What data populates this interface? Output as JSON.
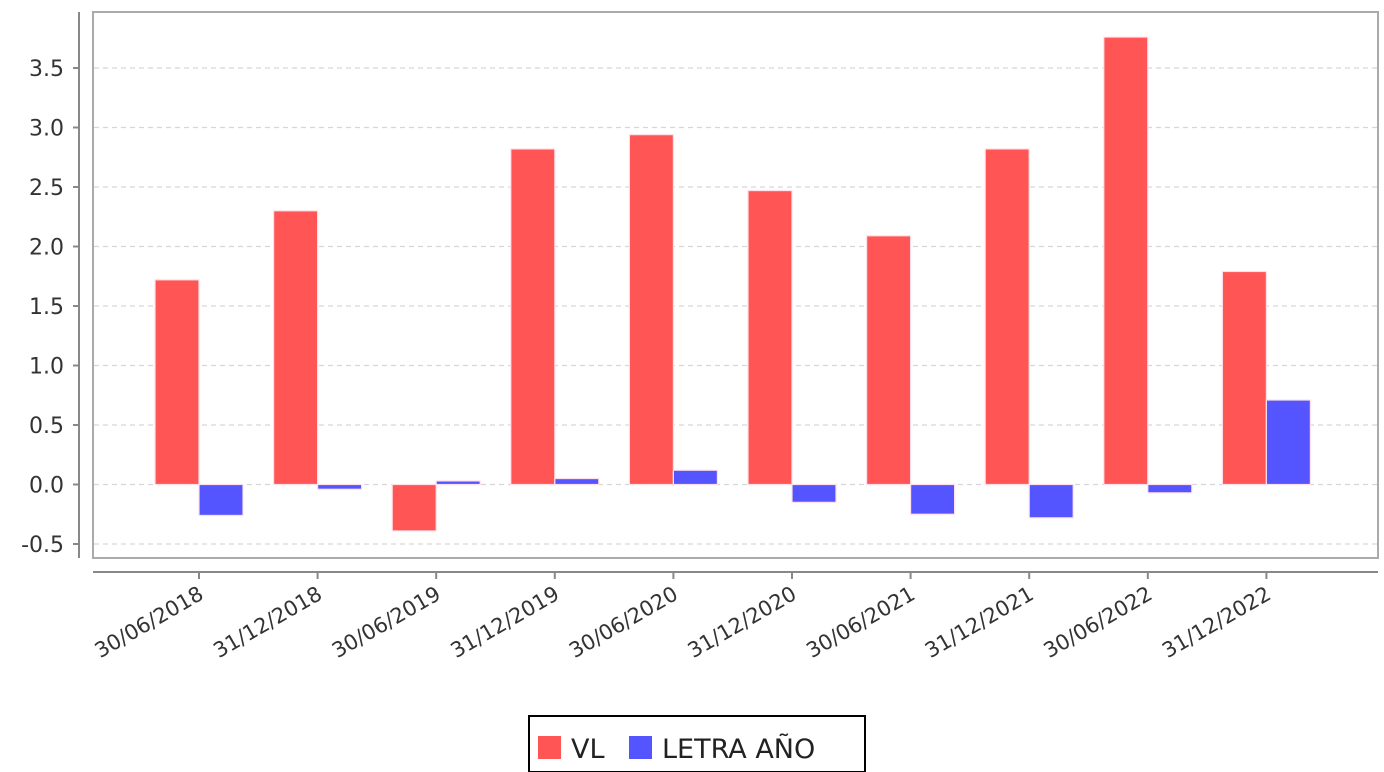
{
  "chart_data": {
    "type": "bar",
    "title": "",
    "xlabel": "",
    "ylabel": "",
    "categories": [
      "30/06/2018",
      "31/12/2018",
      "30/06/2019",
      "31/12/2019",
      "30/06/2020",
      "31/12/2020",
      "30/06/2021",
      "31/12/2021",
      "30/06/2022",
      "31/12/2022"
    ],
    "series": [
      {
        "name": "VL",
        "color": "#ff5555",
        "values": [
          1.72,
          2.3,
          -0.39,
          2.82,
          2.94,
          2.47,
          2.09,
          2.82,
          3.76,
          1.79
        ]
      },
      {
        "name": "LETRA AÑO",
        "color": "#5555ff",
        "values": [
          -0.26,
          -0.04,
          0.03,
          0.05,
          0.12,
          -0.15,
          -0.25,
          -0.28,
          -0.07,
          0.71
        ]
      }
    ],
    "ylim": [
      -0.6,
      3.95
    ],
    "yticks": [
      "-0.5",
      "0.0",
      "0.5",
      "1.0",
      "1.5",
      "2.0",
      "2.5",
      "3.0",
      "3.5"
    ],
    "grid": true,
    "legend_position": "bottom"
  }
}
